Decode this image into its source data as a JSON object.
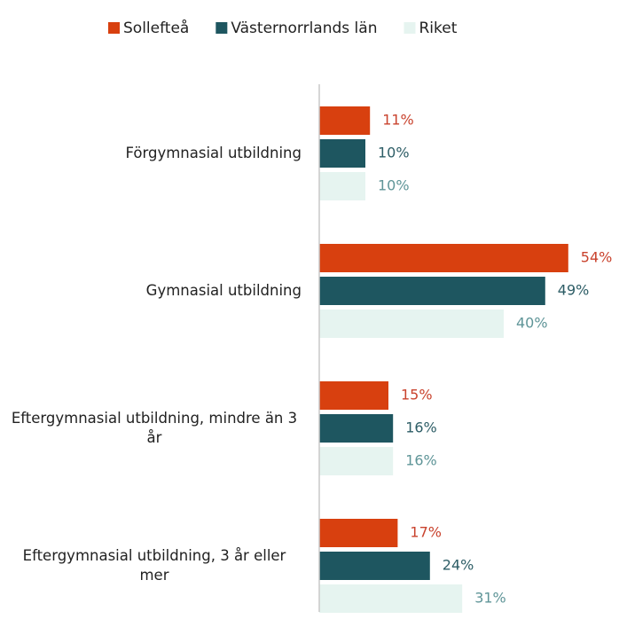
{
  "chart_data": {
    "type": "hbar",
    "categories": [
      "Förgymnasial utbildning",
      "Gymnasial utbildning",
      "Eftergymnasial utbildning, mindre än 3 år",
      "Eftergymnasial utbildning, 3 år eller mer"
    ],
    "series": [
      {
        "name": "Sollefteå",
        "color": "#d8400f",
        "label_color": "#c9432e",
        "values": [
          11,
          54,
          15,
          17
        ],
        "value_labels": [
          "11%",
          "54%",
          "15%",
          "17%"
        ]
      },
      {
        "name": "Västernorrlands län",
        "color": "#1e5660",
        "label_color": "#2d5d66",
        "values": [
          10,
          49,
          16,
          24
        ],
        "value_labels": [
          "10%",
          "49%",
          "16%",
          "24%"
        ]
      },
      {
        "name": "Riket",
        "color": "#e6f4f0",
        "label_color": "#5f9598",
        "values": [
          10,
          40,
          16,
          31
        ],
        "value_labels": [
          "10%",
          "40%",
          "16%",
          "31%"
        ]
      }
    ],
    "xlim": [
      0,
      60
    ],
    "legend": "top"
  }
}
